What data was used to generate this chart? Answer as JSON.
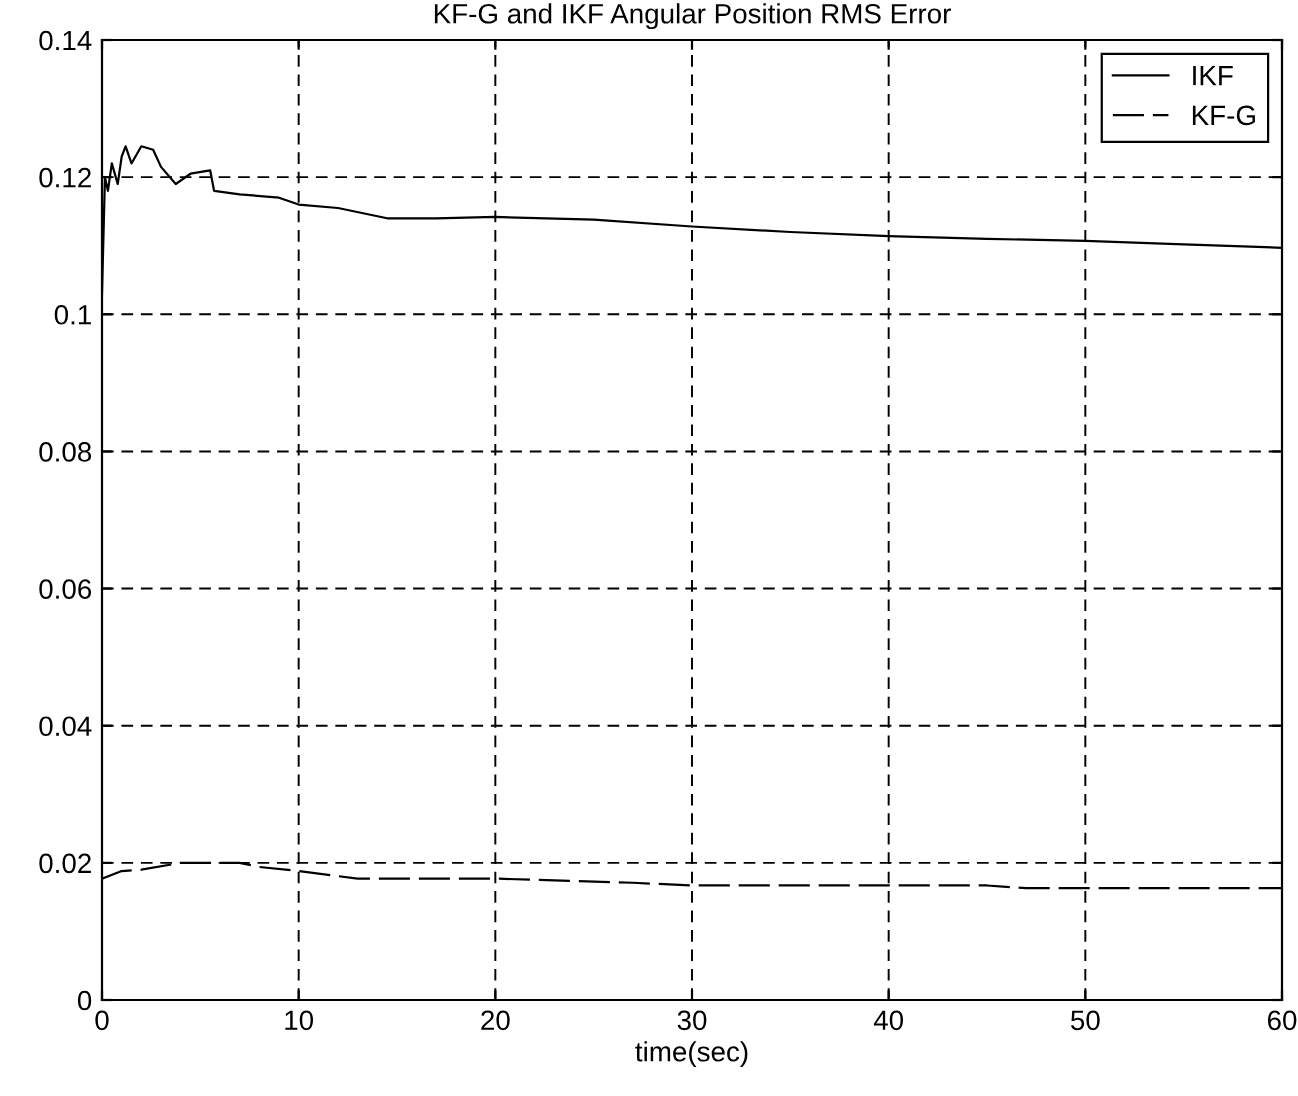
{
  "chart_data": {
    "type": "line",
    "title": "KF-G and IKF Angular Position RMS Error",
    "xlabel": "time(sec)",
    "series": [
      {
        "name": "IKF",
        "color": "#000000",
        "line_style": "solid",
        "x": [
          0,
          0.15,
          0.3,
          0.5,
          0.8,
          1,
          1.2,
          1.5,
          2,
          2.6,
          3,
          3.75,
          4.5,
          5.5,
          5.7,
          7,
          9,
          10,
          12,
          14.5,
          17,
          20,
          25,
          30,
          35,
          40,
          45,
          50,
          55,
          60
        ],
        "values": [
          0.103,
          0.12,
          0.118,
          0.122,
          0.119,
          0.123,
          0.1245,
          0.122,
          0.1245,
          0.124,
          0.1215,
          0.119,
          0.1205,
          0.121,
          0.118,
          0.1175,
          0.117,
          0.116,
          0.1155,
          0.114,
          0.114,
          0.1142,
          0.1138,
          0.1128,
          0.112,
          0.1114,
          0.111,
          0.1107,
          0.1102,
          0.1097
        ]
      },
      {
        "name": "KF-G",
        "color": "#000000",
        "line_style": "dashed",
        "x": [
          0,
          1,
          2,
          4,
          7,
          8,
          10,
          13,
          20,
          27,
          30,
          45,
          47,
          60
        ],
        "values": [
          0.0177,
          0.0188,
          0.019,
          0.02,
          0.02,
          0.0194,
          0.0188,
          0.0177,
          0.0177,
          0.0171,
          0.0167,
          0.0167,
          0.0163,
          0.0163
        ]
      }
    ],
    "xlim": [
      0,
      60
    ],
    "xticks": [
      0,
      10,
      20,
      30,
      40,
      50,
      60
    ],
    "ylim": [
      0,
      0.14
    ],
    "yticks": [
      0,
      0.02,
      0.04,
      0.06,
      0.08,
      0.1,
      0.12,
      0.14
    ],
    "grid": true,
    "legend": "top right"
  }
}
